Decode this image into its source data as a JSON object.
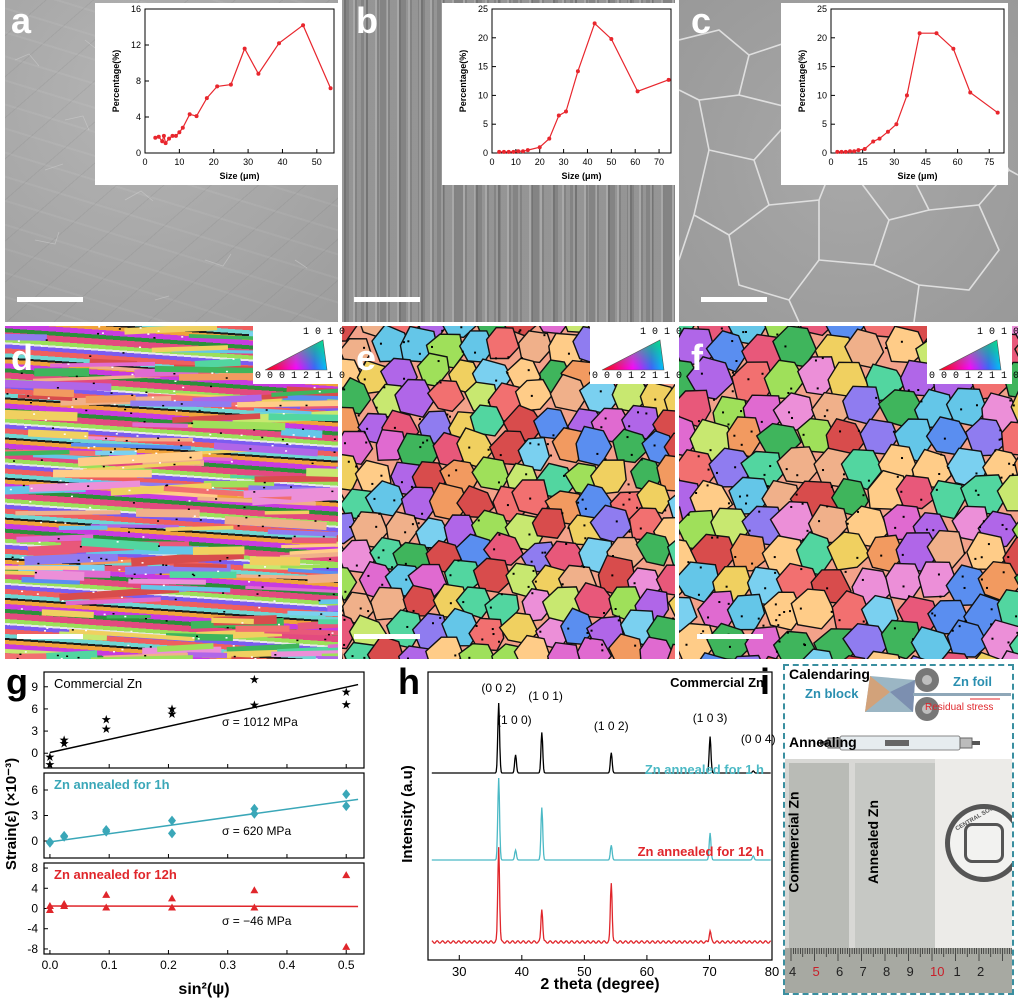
{
  "panels": {
    "a": "a",
    "b": "b",
    "c": "c",
    "d": "d",
    "e": "e",
    "f": "f",
    "g": "g",
    "h": "h",
    "i": "i"
  },
  "insets": {
    "ylabel": "Percentage(%)",
    "xlabel": "Size (μm)"
  },
  "ipf_key": {
    "top": "1 0 1 0",
    "left": "0 0 0 1",
    "right": "2 1 1 0"
  },
  "g": {
    "ylabel": "Strain(ε) (×10⁻³)",
    "xlabel": "sin²(ψ)",
    "sub": [
      {
        "name": "Commercial Zn",
        "stress": "σ = 1012 MPa"
      },
      {
        "name": "Zn annealed for 1h",
        "stress": "σ = 620 MPa"
      },
      {
        "name": "Zn annealed for 12h",
        "stress": "σ = −46 MPa"
      }
    ]
  },
  "h": {
    "ylabel": "Intensity (a.u)",
    "xlabel": "2 theta (degree)",
    "peaks": [
      "(0 0 2)",
      "(1 0 0)",
      "(1 0 1)",
      "(1 0 2)",
      "(1 0 3)",
      "(0 0 4)"
    ],
    "traces": [
      {
        "name": "Commercial Zn",
        "color": "#000000"
      },
      {
        "name": "Zn annealed for 1 h",
        "color": "#4bb9c5"
      },
      {
        "name": "Zn annealed for 12 h",
        "color": "#e0262b"
      }
    ]
  },
  "i": {
    "calendaring": "Calendaring",
    "zn_block": "Zn block",
    "zn_foil": "Zn foil",
    "residual_stress": "Residual stress",
    "annealing": "Annealing",
    "commercial": "Commercial Zn",
    "annealed": "Annealed Zn",
    "seal": "CENTRAL SOUTH UNI",
    "ruler": [
      "4",
      "5",
      "6",
      "7",
      "8",
      "9",
      "10",
      "1",
      "2"
    ]
  },
  "chart_data": [
    {
      "type": "line",
      "panel": "a",
      "xlabel": "Size (μm)",
      "ylabel": "Percentage(%)",
      "xlim": [
        0,
        55
      ],
      "ylim": [
        0,
        16
      ],
      "xticks": [
        0,
        10,
        20,
        30,
        40,
        50
      ],
      "yticks": [
        0,
        4,
        8,
        12,
        16
      ],
      "x": [
        3,
        4,
        5,
        5.5,
        6,
        7,
        8,
        9,
        10,
        11,
        13,
        15,
        18,
        21,
        25,
        29,
        33,
        39,
        46,
        54
      ],
      "y": [
        1.7,
        1.8,
        1.3,
        1.9,
        1.1,
        1.6,
        1.9,
        1.9,
        2.3,
        2.8,
        4.3,
        4.1,
        6.1,
        7.4,
        7.6,
        11.6,
        8.8,
        12.2,
        14.2,
        7.2
      ]
    },
    {
      "type": "line",
      "panel": "b",
      "xlabel": "Size (μm)",
      "ylabel": "Percentage(%)",
      "xlim": [
        0,
        75
      ],
      "ylim": [
        0,
        25
      ],
      "xticks": [
        0,
        10,
        20,
        30,
        40,
        50,
        60,
        70
      ],
      "yticks": [
        0,
        5,
        10,
        15,
        20,
        25
      ],
      "x": [
        3,
        5,
        7,
        9,
        11,
        13,
        15,
        20,
        24,
        28,
        31,
        36,
        43,
        50,
        61,
        74
      ],
      "y": [
        0.2,
        0.2,
        0.2,
        0.2,
        0.3,
        0.3,
        0.5,
        1.0,
        2.5,
        6.5,
        7.2,
        14.2,
        22.5,
        19.8,
        10.7,
        12.7
      ]
    },
    {
      "type": "line",
      "panel": "c",
      "xlabel": "Size (μm)",
      "ylabel": "Percentage(%)",
      "xlim": [
        0,
        82
      ],
      "ylim": [
        0,
        25
      ],
      "xticks": [
        0,
        15,
        30,
        45,
        60,
        75
      ],
      "yticks": [
        0,
        5,
        10,
        15,
        20,
        25
      ],
      "x": [
        3,
        5,
        7,
        9,
        11,
        13,
        16,
        20,
        23,
        27,
        31,
        36,
        42,
        50,
        58,
        66,
        79
      ],
      "y": [
        0.2,
        0.2,
        0.2,
        0.3,
        0.3,
        0.5,
        0.7,
        2.0,
        2.5,
        3.7,
        5.0,
        10.0,
        20.8,
        20.8,
        18.1,
        10.5,
        7.0
      ]
    },
    {
      "type": "scatter",
      "panel": "g",
      "xlabel": "sin²(ψ)",
      "ylabel": "Strain(ε) (×10⁻³)",
      "xlim": [
        -0.01,
        0.53
      ],
      "xticks": [
        0.0,
        0.1,
        0.2,
        0.3,
        0.4,
        0.5
      ],
      "series": [
        {
          "name": "Commercial Zn",
          "ylim": [
            -2,
            11
          ],
          "yticks": [
            0,
            3,
            6,
            9
          ],
          "x": [
            0.0,
            0.0,
            0.024,
            0.024,
            0.095,
            0.095,
            0.206,
            0.206,
            0.345,
            0.345,
            0.5,
            0.5
          ],
          "y": [
            -0.5,
            -1.5,
            1.3,
            1.8,
            4.6,
            3.3,
            6.0,
            5.3,
            10.0,
            6.5,
            8.3,
            6.6
          ],
          "fit": [
            [
              0.0,
              0.1
            ],
            [
              0.52,
              9.3
            ]
          ]
        },
        {
          "name": "Zn annealed for 1h",
          "ylim": [
            -2,
            8
          ],
          "yticks": [
            0,
            3,
            6
          ],
          "x": [
            0.0,
            0.0,
            0.024,
            0.024,
            0.095,
            0.095,
            0.206,
            0.206,
            0.345,
            0.345,
            0.5,
            0.5
          ],
          "y": [
            -0.1,
            -0.2,
            0.6,
            0.5,
            1.3,
            1.1,
            2.4,
            0.9,
            3.8,
            3.2,
            5.5,
            4.1
          ],
          "fit": [
            [
              0.0,
              -0.1
            ],
            [
              0.52,
              4.9
            ]
          ]
        },
        {
          "name": "Zn annealed for 12h",
          "ylim": [
            -9,
            9
          ],
          "yticks": [
            -8,
            -4,
            0,
            4,
            8
          ],
          "x": [
            0.0,
            0.0,
            0.024,
            0.024,
            0.095,
            0.095,
            0.206,
            0.206,
            0.345,
            0.345,
            0.5,
            0.5
          ],
          "y": [
            0.5,
            -0.3,
            0.9,
            0.5,
            2.7,
            0.2,
            2.0,
            0.2,
            3.6,
            0.2,
            6.6,
            -7.6
          ],
          "fit": [
            [
              0.0,
              0.5
            ],
            [
              0.52,
              0.4
            ]
          ]
        }
      ]
    },
    {
      "type": "line",
      "panel": "h",
      "xlabel": "2 theta (degree)",
      "ylabel": "Intensity (a.u)",
      "xlim": [
        25,
        80
      ],
      "xticks": [
        30,
        40,
        50,
        60,
        70,
        80
      ],
      "series": [
        {
          "name": "Commercial Zn",
          "peaks_x": [
            36.3,
            39.0,
            43.2,
            54.3,
            70.1,
            77.0
          ],
          "peaks_h": [
            1.0,
            0.26,
            0.58,
            0.29,
            0.52,
            0.03
          ]
        },
        {
          "name": "Zn annealed for 1 h",
          "peaks_x": [
            36.3,
            39.0,
            43.2,
            54.3,
            70.1,
            77.0
          ],
          "peaks_h": [
            1.0,
            0.12,
            0.64,
            0.18,
            0.33,
            0.05
          ]
        },
        {
          "name": "Zn annealed for 12 h",
          "peaks_x": [
            36.3,
            43.2,
            54.3,
            70.1
          ],
          "peaks_h": [
            1.0,
            0.35,
            0.62,
            0.12
          ]
        }
      ]
    }
  ]
}
